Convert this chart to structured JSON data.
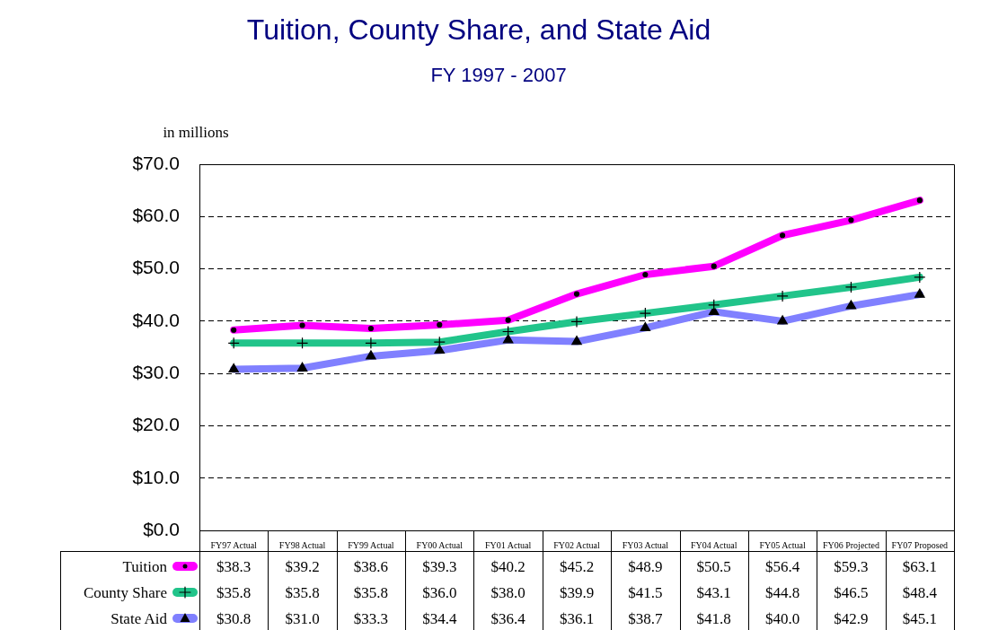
{
  "chart_data": {
    "type": "line",
    "title": "Tuition, County Share, and State Aid",
    "subtitle": "FY 1997 - 2007",
    "ylabel": "in millions",
    "categories": [
      "FY97 Actual",
      "FY98 Actual",
      "FY99 Actual",
      "FY00 Actual",
      "FY01 Actual",
      "FY02 Actual",
      "FY03 Actual",
      "FY04 Actual",
      "FY05 Actual",
      "FY06 Projected",
      "FY07 Proposed"
    ],
    "series": [
      {
        "name": "Tuition",
        "color": "#ff00ff",
        "marker": "circle",
        "values": [
          38.3,
          39.2,
          38.6,
          39.3,
          40.2,
          45.2,
          48.9,
          50.5,
          56.4,
          59.3,
          63.1
        ],
        "value_labels": [
          "$38.3",
          "$39.2",
          "$38.6",
          "$39.3",
          "$40.2",
          "$45.2",
          "$48.9",
          "$50.5",
          "$56.4",
          "$59.3",
          "$63.1"
        ]
      },
      {
        "name": "County Share",
        "color": "#21c48a",
        "marker": "cross",
        "values": [
          35.8,
          35.8,
          35.8,
          36.0,
          38.0,
          39.9,
          41.5,
          43.1,
          44.8,
          46.5,
          48.4
        ],
        "value_labels": [
          "$35.8",
          "$35.8",
          "$35.8",
          "$36.0",
          "$38.0",
          "$39.9",
          "$41.5",
          "$43.1",
          "$44.8",
          "$46.5",
          "$48.4"
        ]
      },
      {
        "name": "State Aid",
        "color": "#8080ff",
        "marker": "triangle",
        "values": [
          30.8,
          31.0,
          33.3,
          34.4,
          36.4,
          36.1,
          38.7,
          41.8,
          40.0,
          42.9,
          45.1
        ],
        "value_labels": [
          "$30.8",
          "$31.0",
          "$33.3",
          "$34.4",
          "$36.4",
          "$36.1",
          "$38.7",
          "$41.8",
          "$40.0",
          "$42.9",
          "$45.1"
        ]
      }
    ],
    "ylim": [
      0,
      70
    ],
    "yticks": [
      {
        "value": 0,
        "label": "$0.0"
      },
      {
        "value": 10,
        "label": "$10.0"
      },
      {
        "value": 20,
        "label": "$20.0"
      },
      {
        "value": 30,
        "label": "$30.0"
      },
      {
        "value": 40,
        "label": "$40.0"
      },
      {
        "value": 50,
        "label": "$50.0"
      },
      {
        "value": 60,
        "label": "$60.0"
      },
      {
        "value": 70,
        "label": "$70.0"
      }
    ],
    "grid": "y",
    "legend": "bottom left",
    "line_style": "solid"
  }
}
